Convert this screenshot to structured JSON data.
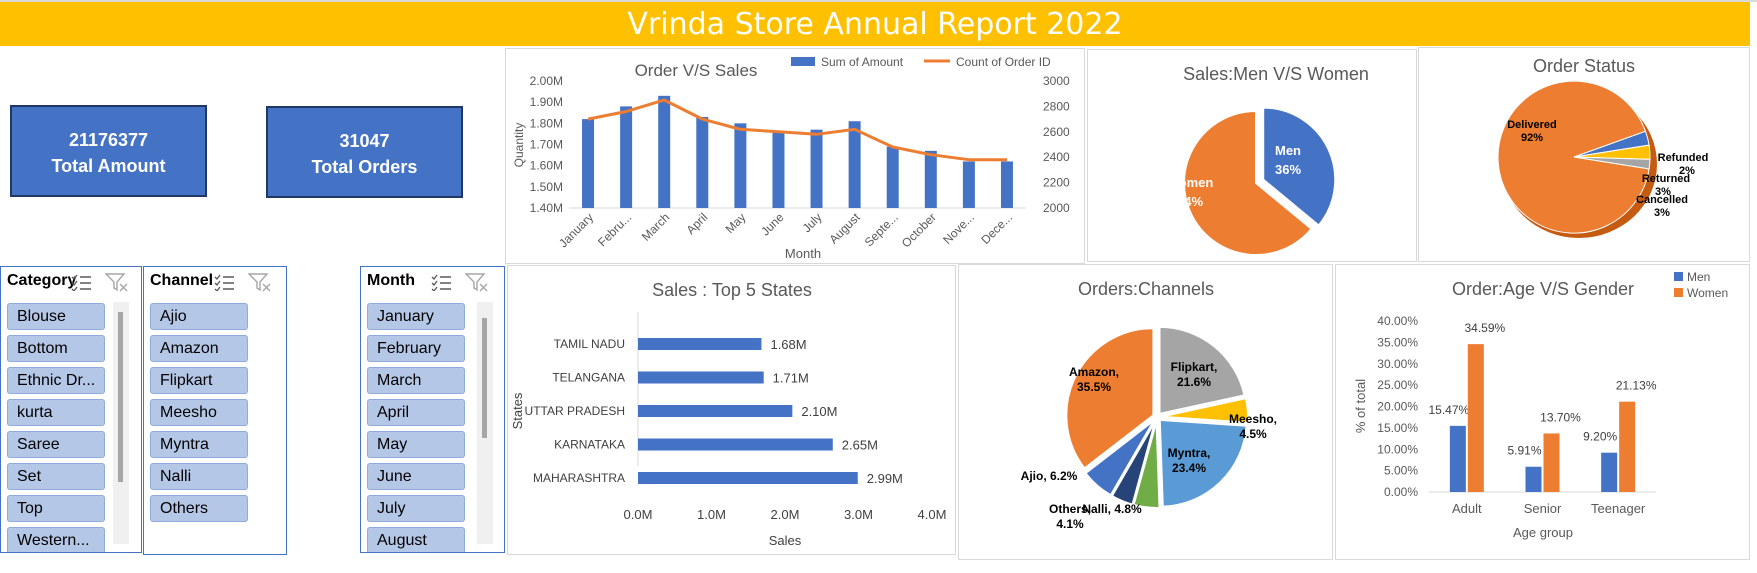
{
  "header": {
    "title": "Vrinda Store Annual Report 2022"
  },
  "kpis": {
    "total_amount_value": "21176377",
    "total_amount_label": "Total Amount",
    "total_orders_value": "31047",
    "total_orders_label": "Total Orders"
  },
  "slicers": {
    "category": {
      "title": "Category",
      "items": [
        "Blouse",
        "Bottom",
        "Ethnic Dr...",
        "kurta",
        "Saree",
        "Set",
        "Top",
        "Western..."
      ]
    },
    "channel": {
      "title": "Channel",
      "items": [
        "Ajio",
        "Amazon",
        "Flipkart",
        "Meesho",
        "Myntra",
        "Nalli",
        "Others"
      ]
    },
    "month": {
      "title": "Month",
      "items": [
        "January",
        "February",
        "March",
        "April",
        "May",
        "June",
        "July",
        "August"
      ]
    }
  },
  "colors": {
    "blue": "#4472c4",
    "orange": "#ed7d31",
    "gray": "#a5a5a5",
    "yellow": "#ffc000",
    "lightblue": "#5b9bd5",
    "green": "#70ad47",
    "navy": "#264478"
  },
  "icons": {
    "multiselect": "multi-select-icon",
    "clear_filter": "clear-filter-icon"
  },
  "chart_data": [
    {
      "type": "bar+line",
      "title": "Order V/S Sales",
      "xlabel": "Month",
      "ylabel": "Quantity",
      "categories": [
        "January",
        "Febru...",
        "March",
        "April",
        "May",
        "June",
        "July",
        "August",
        "Septe...",
        "October",
        "Nove...",
        "Dece..."
      ],
      "series": [
        {
          "name": "Sum of Amount",
          "type": "bar",
          "axis": "left",
          "values": [
            1.82,
            1.88,
            1.93,
            1.83,
            1.8,
            1.76,
            1.77,
            1.81,
            1.69,
            1.67,
            1.62,
            1.62
          ]
        },
        {
          "name": "Count of Order ID",
          "type": "line",
          "axis": "right",
          "values": [
            2700,
            2760,
            2850,
            2700,
            2620,
            2600,
            2580,
            2620,
            2480,
            2420,
            2380,
            2380
          ]
        }
      ],
      "ylim": [
        1.4,
        2.0
      ],
      "y_ticks": [
        "2.00M",
        "1.90M",
        "1.80M",
        "1.70M",
        "1.60M",
        "1.50M",
        "1.40M"
      ],
      "y2lim": [
        2000,
        3000
      ],
      "y2_ticks": [
        "3000",
        "2800",
        "2600",
        "2400",
        "2200",
        "2000"
      ],
      "legend": "top"
    },
    {
      "type": "pie",
      "title": "Sales:Men V/S Women",
      "labels": [
        "Men",
        "Women"
      ],
      "values": [
        36,
        64
      ],
      "label_text": [
        "36%",
        "64%"
      ]
    },
    {
      "type": "pie",
      "title": "Order Status",
      "labels": [
        "Delivered",
        "Refunded",
        "Returned",
        "Cancelled"
      ],
      "values": [
        92,
        2,
        3,
        3
      ],
      "label_text": [
        "92%",
        "2%",
        "3%",
        "3%"
      ]
    },
    {
      "type": "bar",
      "orientation": "horizontal",
      "title": "Sales : Top 5 States",
      "xlabel": "Sales",
      "ylabel": "States",
      "categories": [
        "TAMIL NADU",
        "TELANGANA",
        "UTTAR PRADESH",
        "KARNATAKA",
        "MAHARASHTRA"
      ],
      "values": [
        1.68,
        1.71,
        2.1,
        2.65,
        2.99
      ],
      "data_labels": [
        "1.68M",
        "1.71M",
        "2.10M",
        "2.65M",
        "2.99M"
      ],
      "xlim": [
        0,
        4
      ],
      "x_ticks": [
        "0.0M",
        "1.0M",
        "2.0M",
        "3.0M",
        "4.0M"
      ]
    },
    {
      "type": "pie",
      "title": "Orders:Channels",
      "labels": [
        "Amazon",
        "Flipkart",
        "Meesho",
        "Myntra",
        "Nalli",
        "Others",
        "Ajio"
      ],
      "values": [
        35.5,
        21.6,
        4.5,
        23.4,
        4.8,
        4.1,
        6.2
      ],
      "label_text": [
        "35.5%",
        "21.6%",
        "4.5%",
        "23.4%",
        "4.8%",
        "4.1%",
        "6.2%"
      ]
    },
    {
      "type": "bar",
      "title": "Order:Age V/S Gender",
      "xlabel": "Age group",
      "ylabel": "% of total",
      "categories": [
        "Adult",
        "Senior",
        "Teenager"
      ],
      "series": [
        {
          "name": "Men",
          "values": [
            15.47,
            5.91,
            9.2
          ],
          "labels": [
            "15.47%",
            "5.91%",
            "9.20%"
          ]
        },
        {
          "name": "Women",
          "values": [
            34.59,
            13.7,
            21.13
          ],
          "labels": [
            "34.59%",
            "13.70%",
            "21.13%"
          ]
        }
      ],
      "ylim": [
        0,
        40
      ],
      "y_ticks": [
        "40.00%",
        "35.00%",
        "30.00%",
        "25.00%",
        "20.00%",
        "15.00%",
        "10.00%",
        "5.00%",
        "0.00%"
      ],
      "legend": "top-right"
    }
  ]
}
